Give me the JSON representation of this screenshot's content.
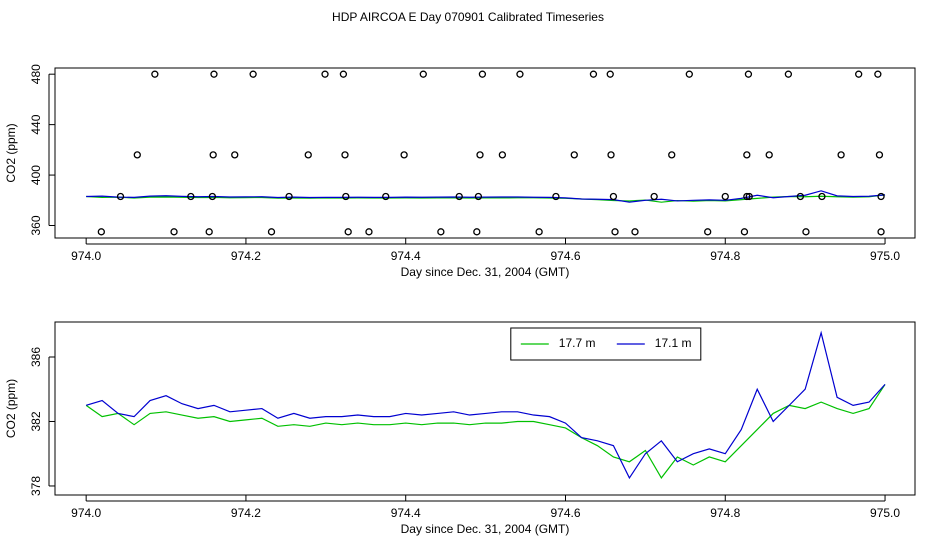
{
  "title": "HDP AIRCOA E  Day 070901  Calibrated Timeseries",
  "chart_data": [
    {
      "type": "line",
      "x_label": "Day since Dec. 31, 2004 (GMT)",
      "y_label": "CO2 (ppm)",
      "xlim": [
        973.961,
        975.0375
      ],
      "ylim": [
        350.1,
        484.9
      ],
      "xticks": [
        {
          "value": 974,
          "label": "974.0"
        },
        974.2,
        974.4,
        974.6,
        974.8,
        {
          "value": 975,
          "label": "975.0"
        }
      ],
      "yticks": [
        360,
        400,
        440,
        480
      ],
      "series": [
        {
          "style": "line",
          "color": "#00c000",
          "x": [
            974.0,
            974.02,
            974.04,
            974.06,
            974.08,
            974.1,
            974.12,
            974.14,
            974.16,
            974.18,
            974.2,
            974.22,
            974.24,
            974.26,
            974.28,
            974.3,
            974.32,
            974.34,
            974.36,
            974.38,
            974.4,
            974.42,
            974.44,
            974.46,
            974.48,
            974.5,
            974.52,
            974.54,
            974.56,
            974.58,
            974.6,
            974.62,
            974.64,
            974.66,
            974.68,
            974.7,
            974.72,
            974.74,
            974.76,
            974.78,
            974.8,
            974.82,
            974.84,
            974.86,
            974.88,
            974.9,
            974.92,
            974.94,
            974.96,
            974.98,
            975.0
          ],
          "values": [
            383,
            382.3,
            382.5,
            381.8,
            382.5,
            382.6,
            382.4,
            382.2,
            382.3,
            382,
            382.1,
            382.2,
            381.7,
            381.8,
            381.7,
            381.9,
            381.8,
            381.9,
            381.8,
            381.8,
            381.9,
            381.8,
            381.9,
            381.9,
            381.8,
            381.9,
            381.9,
            382,
            382,
            381.8,
            381.6,
            381,
            380.5,
            379.8,
            379.5,
            380.2,
            378.5,
            379.8,
            379.3,
            379.8,
            379.5,
            380.5,
            381.5,
            382.5,
            383,
            382.8,
            383.2,
            382.8,
            382.5,
            382.8,
            384.3
          ]
        },
        {
          "style": "line",
          "color": "#0000d0",
          "x": [
            974.0,
            974.02,
            974.04,
            974.06,
            974.08,
            974.1,
            974.12,
            974.14,
            974.16,
            974.18,
            974.2,
            974.22,
            974.24,
            974.26,
            974.28,
            974.3,
            974.32,
            974.34,
            974.36,
            974.38,
            974.4,
            974.42,
            974.44,
            974.46,
            974.48,
            974.5,
            974.52,
            974.54,
            974.56,
            974.58,
            974.6,
            974.62,
            974.64,
            974.66,
            974.68,
            974.7,
            974.72,
            974.74,
            974.76,
            974.78,
            974.8,
            974.82,
            974.84,
            974.86,
            974.88,
            974.9,
            974.92,
            974.94,
            974.96,
            974.98,
            975.0
          ],
          "values": [
            383,
            383.3,
            382.5,
            382.3,
            383.3,
            383.6,
            383.1,
            382.8,
            383,
            382.6,
            382.7,
            382.8,
            382.2,
            382.5,
            382.2,
            382.3,
            382.3,
            382.4,
            382.3,
            382.3,
            382.5,
            382.4,
            382.5,
            382.6,
            382.4,
            382.5,
            382.6,
            382.6,
            382.4,
            382.3,
            381.9,
            381,
            380.8,
            380.5,
            378.5,
            380,
            380.8,
            379.5,
            380,
            380.3,
            380,
            381.5,
            384,
            382,
            383,
            384,
            387.5,
            383.5,
            383,
            383.2,
            384.3
          ]
        },
        {
          "style": "points",
          "color": "#000000",
          "x": [
            974.086,
            974.16,
            974.209,
            974.299,
            974.322,
            974.422,
            974.496,
            974.543,
            974.635,
            974.656,
            974.755,
            974.829,
            974.879,
            974.967,
            974.991
          ],
          "values": [
            480,
            480,
            480,
            480,
            480,
            480,
            480,
            480,
            480,
            480,
            480,
            480,
            480,
            480,
            480
          ]
        },
        {
          "style": "points",
          "color": "#000000",
          "x": [
            974.064,
            974.159,
            974.186,
            974.278,
            974.324,
            974.398,
            974.493,
            974.521,
            974.611,
            974.657,
            974.733,
            974.827,
            974.855,
            974.945,
            974.993
          ],
          "values": [
            416,
            416,
            416,
            416,
            416,
            416,
            416,
            416,
            416,
            416,
            416,
            416,
            416,
            416,
            416
          ]
        },
        {
          "style": "points",
          "color": "#000000",
          "x": [
            974.043,
            974.131,
            974.158,
            974.254,
            974.325,
            974.375,
            974.467,
            974.491,
            974.588,
            974.66,
            974.711,
            974.8,
            974.827,
            974.83,
            974.894,
            974.921,
            974.995
          ],
          "values": [
            383,
            383,
            383,
            383,
            383,
            383,
            383,
            383,
            383,
            383,
            383,
            383,
            383,
            383,
            383,
            383,
            383
          ]
        },
        {
          "style": "points",
          "color": "#000000",
          "x": [
            974.019,
            974.11,
            974.154,
            974.232,
            974.328,
            974.354,
            974.444,
            974.489,
            974.567,
            974.662,
            974.687,
            974.778,
            974.824,
            974.901,
            974.995
          ],
          "values": [
            355,
            355,
            355,
            355,
            355,
            355,
            355,
            355,
            355,
            355,
            355,
            355,
            355,
            355,
            355
          ]
        }
      ]
    },
    {
      "type": "line",
      "x_label": "Day since Dec. 31, 2004 (GMT)",
      "y_label": "CO2 (ppm)",
      "xlim": [
        973.961,
        975.0375
      ],
      "ylim": [
        377.44,
        388.17
      ],
      "xticks": [
        {
          "value": 974,
          "label": "974.0"
        },
        974.2,
        974.4,
        974.6,
        974.8,
        {
          "value": 975,
          "label": "975.0"
        }
      ],
      "yticks": [
        378,
        382,
        386
      ],
      "legend": "top",
      "series": [
        {
          "name": "17.7 m",
          "style": "line",
          "color": "#00c000",
          "x": [
            974.0,
            974.02,
            974.04,
            974.06,
            974.08,
            974.1,
            974.12,
            974.14,
            974.16,
            974.18,
            974.2,
            974.22,
            974.24,
            974.26,
            974.28,
            974.3,
            974.32,
            974.34,
            974.36,
            974.38,
            974.4,
            974.42,
            974.44,
            974.46,
            974.48,
            974.5,
            974.52,
            974.54,
            974.56,
            974.58,
            974.6,
            974.62,
            974.64,
            974.66,
            974.68,
            974.7,
            974.72,
            974.74,
            974.76,
            974.78,
            974.8,
            974.82,
            974.84,
            974.86,
            974.88,
            974.9,
            974.92,
            974.94,
            974.96,
            974.98,
            975.0
          ],
          "values": [
            383,
            382.3,
            382.5,
            381.8,
            382.5,
            382.6,
            382.4,
            382.2,
            382.3,
            382,
            382.1,
            382.2,
            381.7,
            381.8,
            381.7,
            381.9,
            381.8,
            381.9,
            381.8,
            381.8,
            381.9,
            381.8,
            381.9,
            381.9,
            381.8,
            381.9,
            381.9,
            382,
            382,
            381.8,
            381.6,
            381,
            380.5,
            379.8,
            379.5,
            380.2,
            378.5,
            379.8,
            379.3,
            379.8,
            379.5,
            380.5,
            381.5,
            382.5,
            383,
            382.8,
            383.2,
            382.8,
            382.5,
            382.8,
            384.3
          ]
        },
        {
          "name": "17.1 m",
          "style": "line",
          "color": "#0000d0",
          "x": [
            974.0,
            974.02,
            974.04,
            974.06,
            974.08,
            974.1,
            974.12,
            974.14,
            974.16,
            974.18,
            974.2,
            974.22,
            974.24,
            974.26,
            974.28,
            974.3,
            974.32,
            974.34,
            974.36,
            974.38,
            974.4,
            974.42,
            974.44,
            974.46,
            974.48,
            974.5,
            974.52,
            974.54,
            974.56,
            974.58,
            974.6,
            974.62,
            974.64,
            974.66,
            974.68,
            974.7,
            974.72,
            974.74,
            974.76,
            974.78,
            974.8,
            974.82,
            974.84,
            974.86,
            974.88,
            974.9,
            974.92,
            974.94,
            974.96,
            974.98,
            975.0
          ],
          "values": [
            383,
            383.3,
            382.5,
            382.3,
            383.3,
            383.6,
            383.1,
            382.8,
            383,
            382.6,
            382.7,
            382.8,
            382.2,
            382.5,
            382.2,
            382.3,
            382.3,
            382.4,
            382.3,
            382.3,
            382.5,
            382.4,
            382.5,
            382.6,
            382.4,
            382.5,
            382.6,
            382.6,
            382.4,
            382.3,
            381.9,
            381,
            380.8,
            380.5,
            378.5,
            380,
            380.8,
            379.5,
            380,
            380.3,
            380,
            381.5,
            384,
            382,
            383,
            384,
            387.5,
            383.5,
            383,
            383.2,
            384.3
          ]
        }
      ]
    }
  ]
}
